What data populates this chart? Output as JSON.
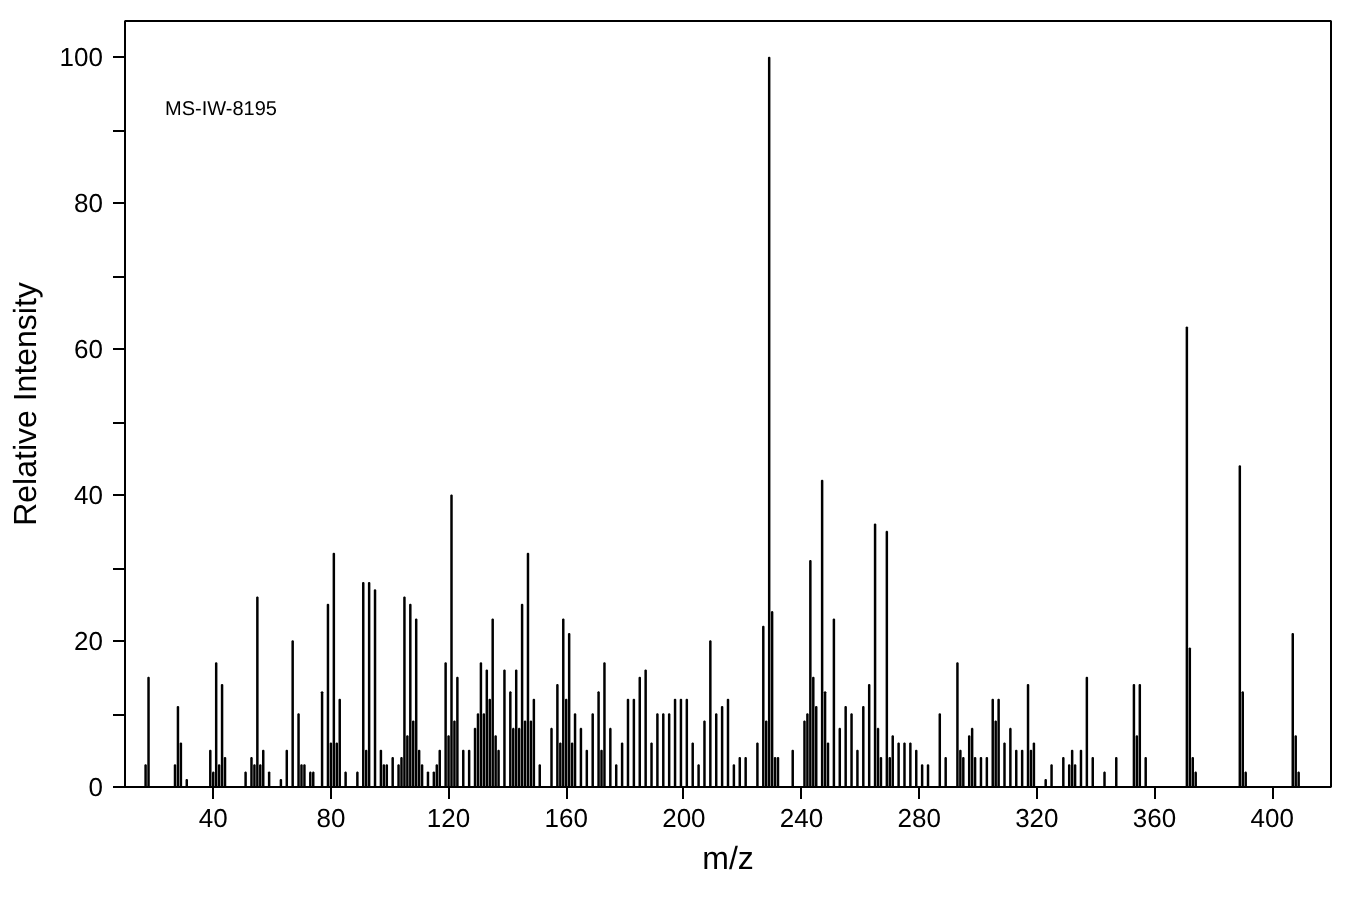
{
  "chart_data": {
    "type": "bar",
    "xlabel": "m/z",
    "ylabel": "Relative Intensity",
    "annotations": [
      "MS-IW-8195"
    ],
    "x": [
      17,
      18,
      27,
      28,
      29,
      31,
      39,
      40,
      41,
      42,
      43,
      44,
      51,
      53,
      54,
      55,
      56,
      57,
      59,
      63,
      65,
      67,
      69,
      70,
      71,
      73,
      74,
      77,
      79,
      80,
      81,
      82,
      83,
      85,
      89,
      91,
      92,
      93,
      95,
      97,
      98,
      99,
      101,
      103,
      104,
      105,
      106,
      107,
      108,
      109,
      110,
      111,
      113,
      115,
      116,
      117,
      119,
      120,
      121,
      122,
      123,
      125,
      127,
      129,
      130,
      131,
      132,
      133,
      134,
      135,
      136,
      137,
      139,
      141,
      142,
      143,
      144,
      145,
      146,
      147,
      148,
      149,
      151,
      155,
      157,
      158,
      159,
      160,
      161,
      162,
      163,
      165,
      167,
      169,
      171,
      172,
      173,
      175,
      177,
      179,
      181,
      183,
      185,
      187,
      189,
      191,
      193,
      195,
      197,
      199,
      201,
      203,
      205,
      207,
      209,
      211,
      213,
      215,
      217,
      219,
      221,
      225,
      227,
      228,
      229,
      230,
      231,
      232,
      237,
      241,
      242,
      243,
      244,
      245,
      247,
      248,
      249,
      251,
      253,
      255,
      257,
      259,
      261,
      263,
      265,
      266,
      267,
      269,
      270,
      271,
      273,
      275,
      277,
      279,
      281,
      283,
      287,
      289,
      293,
      294,
      295,
      297,
      298,
      299,
      301,
      303,
      305,
      306,
      307,
      309,
      311,
      313,
      315,
      317,
      318,
      319,
      323,
      325,
      329,
      331,
      332,
      333,
      335,
      337,
      339,
      343,
      347,
      353,
      354,
      355,
      357,
      371,
      372,
      373,
      374,
      389,
      390,
      391,
      407,
      408,
      409
    ],
    "values": [
      3,
      15,
      3,
      11,
      6,
      1,
      5,
      2,
      17,
      3,
      14,
      4,
      2,
      4,
      3,
      26,
      3,
      5,
      2,
      1,
      5,
      20,
      10,
      3,
      3,
      2,
      2,
      13,
      25,
      6,
      32,
      6,
      12,
      2,
      2,
      28,
      5,
      28,
      27,
      5,
      3,
      3,
      4,
      3,
      4,
      26,
      7,
      25,
      9,
      23,
      5,
      3,
      2,
      2,
      3,
      5,
      17,
      7,
      40,
      9,
      15,
      5,
      5,
      8,
      10,
      17,
      10,
      16,
      12,
      23,
      7,
      5,
      16,
      13,
      8,
      16,
      8,
      25,
      9,
      32,
      9,
      12,
      3,
      8,
      14,
      6,
      23,
      12,
      21,
      6,
      10,
      8,
      5,
      10,
      13,
      5,
      17,
      8,
      3,
      6,
      12,
      12,
      15,
      16,
      6,
      10,
      10,
      10,
      12,
      12,
      12,
      6,
      3,
      9,
      20,
      10,
      11,
      12,
      3,
      4,
      4,
      6,
      22,
      9,
      100,
      24,
      4,
      4,
      5,
      9,
      10,
      31,
      15,
      11,
      42,
      13,
      6,
      23,
      8,
      11,
      10,
      5,
      11,
      14,
      36,
      8,
      4,
      35,
      4,
      7,
      6,
      6,
      6,
      5,
      3,
      3,
      10,
      4,
      17,
      5,
      4,
      7,
      8,
      4,
      4,
      4,
      12,
      9,
      12,
      6,
      8,
      5,
      5,
      14,
      5,
      6,
      1,
      3,
      4,
      3,
      5,
      3,
      5,
      15,
      4,
      2,
      4,
      14,
      7,
      14,
      4,
      63,
      19,
      4,
      2,
      44,
      13,
      2,
      21,
      7,
      2
    ],
    "color": "#000000",
    "xlim": [
      10,
      420
    ],
    "xticks": [
      40,
      80,
      120,
      160,
      200,
      240,
      280,
      320,
      360,
      400
    ],
    "ylim": [
      0,
      105
    ],
    "yticks": [
      0,
      {
        "value": 10,
        "label": null
      },
      20,
      {
        "value": 30,
        "label": null
      },
      40,
      {
        "value": 50,
        "label": null
      },
      60,
      {
        "value": 70,
        "label": null
      },
      80,
      {
        "value": 90,
        "label": null
      },
      100
    ],
    "grid": false
  }
}
